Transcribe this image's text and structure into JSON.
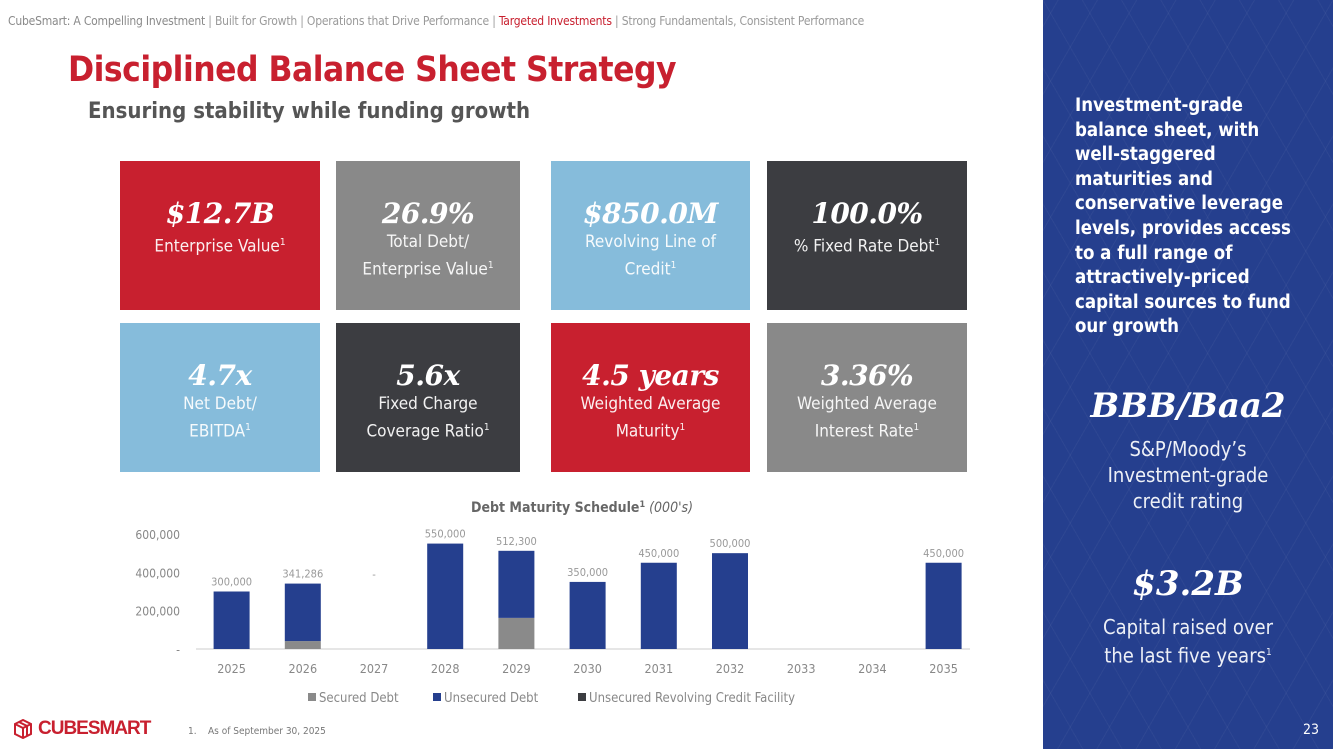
{
  "nav": {
    "items": [
      "CubeSmart: A Compelling Investment",
      "Built for Growth",
      "Operations that Drive Performance",
      "Targeted Investments",
      "Strong Fundamentals, Consistent Performance"
    ],
    "separator": " | ",
    "current_index": 3
  },
  "title": "Disciplined Balance Sheet Strategy",
  "subtitle": "Ensuring stability while funding growth",
  "footnote_mark": "1",
  "tiles": [
    {
      "value": "$12.7B",
      "lines": [
        "Enterprise Value"
      ],
      "color": "#c8202f"
    },
    {
      "value": "26.9%",
      "lines": [
        "Total Debt/",
        "Enterprise Value"
      ],
      "color": "#898989"
    },
    {
      "value": "$850.0M",
      "lines": [
        "Revolving Line of",
        "Credit"
      ],
      "color": "#86bcdb"
    },
    {
      "value": "100.0%",
      "lines": [
        "% Fixed Rate Debt"
      ],
      "color": "#3c3d41"
    },
    {
      "value": "4.7x",
      "lines": [
        "Net Debt/",
        "EBITDA"
      ],
      "color": "#86bcdb"
    },
    {
      "value": "5.6x",
      "lines": [
        "Fixed Charge",
        "Coverage Ratio"
      ],
      "color": "#3c3d41"
    },
    {
      "value": "4.5 years",
      "lines": [
        "Weighted Average",
        "Maturity"
      ],
      "color": "#c8202f"
    },
    {
      "value": "3.36%",
      "lines": [
        "Weighted Average",
        "Interest Rate"
      ],
      "color": "#898989"
    }
  ],
  "side": {
    "text": "Investment-grade balance sheet, with well-staggered maturities and conservative leverage levels, provides access to a full range of attractively-priced capital sources to fund our growth",
    "rating": "BBB/Baa2",
    "rating_lines": [
      "S&P/Moody’s",
      "Investment-grade",
      "credit rating"
    ],
    "capital": "$3.2B",
    "capital_lines": [
      "Capital raised over",
      "the last five years"
    ]
  },
  "chart_data": {
    "type": "bar",
    "stacked": true,
    "title": "Debt Maturity Schedule",
    "title_suffix": "(000's)",
    "categories": [
      "2025",
      "2026",
      "2027",
      "2028",
      "2029",
      "2030",
      "2031",
      "2032",
      "2033",
      "2034",
      "2035"
    ],
    "series": [
      {
        "name": "Secured Debt",
        "color": "#8a8a8a",
        "values": [
          0,
          41286,
          0,
          0,
          162300,
          0,
          0,
          0,
          0,
          0,
          0
        ]
      },
      {
        "name": "Unsecured Debt",
        "color": "#253f8e",
        "values": [
          300000,
          300000,
          0,
          550000,
          350000,
          350000,
          450000,
          500000,
          0,
          0,
          450000
        ]
      },
      {
        "name": "Unsecured Revolving Credit Facility",
        "color": "#3c3d41",
        "values": [
          0,
          0,
          0,
          0,
          0,
          0,
          0,
          0,
          0,
          0,
          0
        ]
      }
    ],
    "data_labels": [
      "300,000",
      "341,286",
      "-",
      "550,000",
      "512,300",
      "350,000",
      "450,000",
      "500,000",
      "",
      "",
      "450,000"
    ],
    "yticks": [
      "-",
      "200,000",
      "400,000",
      "600,000"
    ],
    "ylim": [
      0,
      600000
    ],
    "legend": "bottom",
    "grid": false
  },
  "footnote": "1.    As of September 30, 2025",
  "logo": "CUBESMART",
  "page_number": "23"
}
